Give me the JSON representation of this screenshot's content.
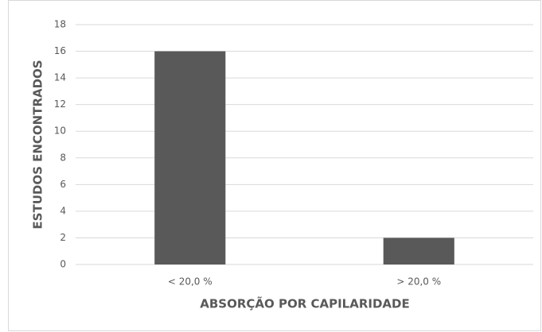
{
  "chart_data": {
    "type": "bar",
    "x_label": "ABSORÇÃO POR CAPILARIDADE",
    "y_label": "ESTUDOS ENCONTRADOS",
    "categories": [
      "< 20,0 %",
      "> 20,0 %"
    ],
    "values": [
      16,
      2
    ],
    "color": "#595959",
    "ylim": [
      0,
      18
    ],
    "yticks": [
      0,
      2,
      4,
      6,
      8,
      10,
      12,
      14,
      16,
      18
    ],
    "grid": true
  }
}
